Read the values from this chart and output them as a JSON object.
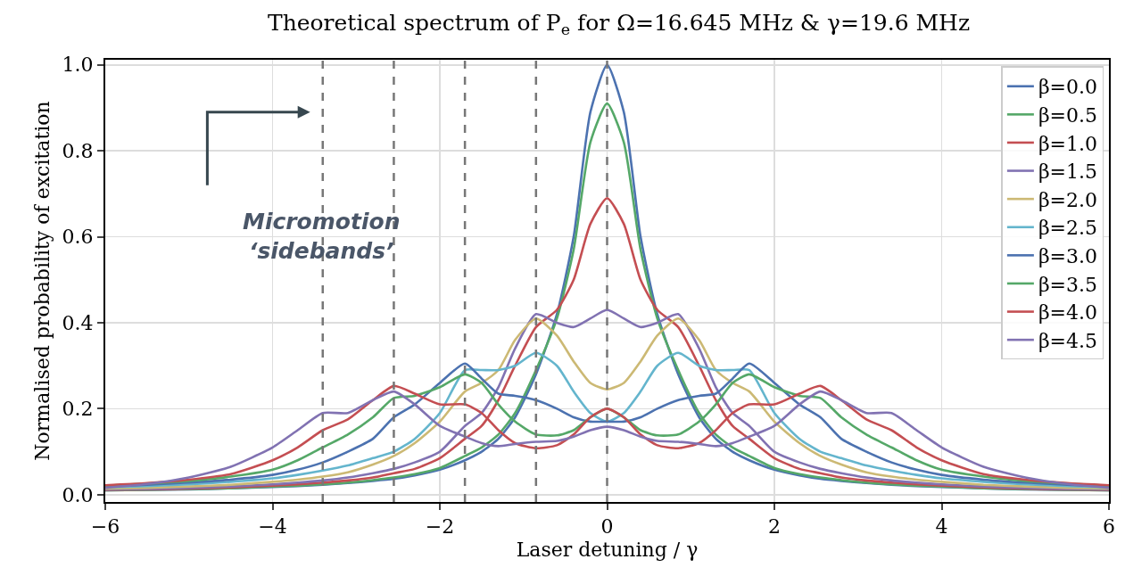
{
  "chart_data": {
    "type": "line",
    "title": "Theoretical spectrum of P$_{e}$ for Ω=16.645 MHz & γ=19.6 MHz",
    "xlabel": "Laser detuning / γ",
    "ylabel": "Normalised probability of excitation",
    "annotations": [
      "Micromotion\n‘sidebands’"
    ],
    "x": [
      -6,
      -5.5,
      -5,
      -4.5,
      -4,
      -3.7,
      -3.4,
      -3.1,
      -2.8,
      -2.55,
      -2.3,
      -2,
      -1.7,
      -1.5,
      -1.3,
      -1.1,
      -0.85,
      -0.6,
      -0.4,
      -0.2,
      0,
      0.2,
      0.4,
      0.6,
      0.85,
      1.1,
      1.3,
      1.5,
      1.7,
      2,
      2.3,
      2.55,
      2.8,
      3.1,
      3.4,
      3.7,
      4,
      4.5,
      5,
      5.5,
      6
    ],
    "series": [
      {
        "name": "β=0.0",
        "color": "#4c72b0",
        "values": [
          0.01,
          0.011,
          0.012,
          0.015,
          0.018,
          0.02,
          0.023,
          0.027,
          0.032,
          0.037,
          0.045,
          0.058,
          0.08,
          0.1,
          0.13,
          0.18,
          0.28,
          0.42,
          0.6,
          0.89,
          1.0,
          0.89,
          0.6,
          0.42,
          0.28,
          0.18,
          0.13,
          0.1,
          0.08,
          0.058,
          0.045,
          0.037,
          0.032,
          0.027,
          0.023,
          0.02,
          0.018,
          0.015,
          0.012,
          0.011,
          0.01
        ]
      },
      {
        "name": "β=0.5",
        "color": "#55a868",
        "values": [
          0.01,
          0.011,
          0.013,
          0.015,
          0.019,
          0.021,
          0.024,
          0.028,
          0.034,
          0.04,
          0.048,
          0.062,
          0.09,
          0.11,
          0.14,
          0.19,
          0.29,
          0.41,
          0.57,
          0.82,
          0.91,
          0.82,
          0.57,
          0.41,
          0.29,
          0.19,
          0.14,
          0.11,
          0.09,
          0.062,
          0.048,
          0.04,
          0.034,
          0.028,
          0.024,
          0.021,
          0.019,
          0.015,
          0.013,
          0.011,
          0.01
        ]
      },
      {
        "name": "β=1.0",
        "color": "#c44e52",
        "values": [
          0.011,
          0.012,
          0.014,
          0.017,
          0.021,
          0.024,
          0.028,
          0.033,
          0.04,
          0.05,
          0.06,
          0.085,
          0.13,
          0.16,
          0.22,
          0.3,
          0.39,
          0.43,
          0.5,
          0.63,
          0.69,
          0.63,
          0.5,
          0.43,
          0.39,
          0.3,
          0.22,
          0.16,
          0.13,
          0.085,
          0.06,
          0.05,
          0.04,
          0.033,
          0.028,
          0.024,
          0.021,
          0.017,
          0.014,
          0.012,
          0.011
        ]
      },
      {
        "name": "β=1.5",
        "color": "#8172b2",
        "values": [
          0.012,
          0.013,
          0.016,
          0.019,
          0.024,
          0.028,
          0.033,
          0.04,
          0.05,
          0.06,
          0.075,
          0.1,
          0.16,
          0.19,
          0.25,
          0.34,
          0.42,
          0.4,
          0.39,
          0.41,
          0.43,
          0.41,
          0.39,
          0.4,
          0.42,
          0.34,
          0.25,
          0.19,
          0.16,
          0.1,
          0.075,
          0.06,
          0.05,
          0.04,
          0.033,
          0.028,
          0.024,
          0.019,
          0.016,
          0.013,
          0.012
        ]
      },
      {
        "name": "β=2.0",
        "color": "#ccb974",
        "values": [
          0.014,
          0.016,
          0.019,
          0.023,
          0.03,
          0.035,
          0.042,
          0.052,
          0.07,
          0.09,
          0.12,
          0.17,
          0.24,
          0.26,
          0.29,
          0.36,
          0.41,
          0.37,
          0.31,
          0.26,
          0.245,
          0.26,
          0.31,
          0.37,
          0.41,
          0.36,
          0.29,
          0.26,
          0.24,
          0.17,
          0.12,
          0.09,
          0.07,
          0.052,
          0.042,
          0.035,
          0.03,
          0.023,
          0.019,
          0.016,
          0.014
        ]
      },
      {
        "name": "β=2.5",
        "color": "#64b5cd",
        "values": [
          0.017,
          0.02,
          0.024,
          0.03,
          0.038,
          0.046,
          0.056,
          0.068,
          0.085,
          0.1,
          0.13,
          0.19,
          0.29,
          0.29,
          0.29,
          0.3,
          0.33,
          0.3,
          0.24,
          0.19,
          0.17,
          0.19,
          0.24,
          0.3,
          0.33,
          0.3,
          0.29,
          0.29,
          0.29,
          0.19,
          0.13,
          0.1,
          0.085,
          0.068,
          0.056,
          0.046,
          0.038,
          0.03,
          0.024,
          0.02,
          0.017
        ]
      },
      {
        "name": "β=3.0",
        "color": "#4c72b0",
        "values": [
          0.019,
          0.023,
          0.028,
          0.035,
          0.046,
          0.058,
          0.075,
          0.1,
          0.13,
          0.18,
          0.21,
          0.26,
          0.305,
          0.27,
          0.235,
          0.23,
          0.22,
          0.2,
          0.18,
          0.17,
          0.17,
          0.17,
          0.18,
          0.2,
          0.22,
          0.23,
          0.235,
          0.27,
          0.305,
          0.26,
          0.21,
          0.18,
          0.13,
          0.1,
          0.075,
          0.058,
          0.046,
          0.035,
          0.028,
          0.023,
          0.019
        ]
      },
      {
        "name": "β=3.5",
        "color": "#55a868",
        "values": [
          0.021,
          0.026,
          0.032,
          0.042,
          0.058,
          0.08,
          0.11,
          0.14,
          0.18,
          0.225,
          0.23,
          0.25,
          0.28,
          0.26,
          0.21,
          0.17,
          0.14,
          0.138,
          0.15,
          0.18,
          0.2,
          0.18,
          0.15,
          0.138,
          0.14,
          0.17,
          0.21,
          0.26,
          0.28,
          0.25,
          0.23,
          0.225,
          0.18,
          0.14,
          0.11,
          0.08,
          0.058,
          0.042,
          0.032,
          0.026,
          0.021
        ]
      },
      {
        "name": "β=4.0",
        "color": "#c44e52",
        "values": [
          0.022,
          0.027,
          0.035,
          0.048,
          0.08,
          0.11,
          0.15,
          0.175,
          0.22,
          0.253,
          0.235,
          0.21,
          0.21,
          0.19,
          0.15,
          0.12,
          0.108,
          0.115,
          0.14,
          0.18,
          0.2,
          0.18,
          0.14,
          0.115,
          0.108,
          0.12,
          0.15,
          0.19,
          0.21,
          0.21,
          0.235,
          0.253,
          0.22,
          0.175,
          0.15,
          0.11,
          0.08,
          0.048,
          0.035,
          0.027,
          0.022
        ]
      },
      {
        "name": "β=4.5",
        "color": "#8172b2",
        "values": [
          0.016,
          0.025,
          0.04,
          0.065,
          0.11,
          0.15,
          0.19,
          0.19,
          0.22,
          0.24,
          0.21,
          0.16,
          0.135,
          0.12,
          0.113,
          0.118,
          0.123,
          0.125,
          0.135,
          0.15,
          0.158,
          0.15,
          0.135,
          0.125,
          0.123,
          0.118,
          0.113,
          0.12,
          0.135,
          0.16,
          0.21,
          0.24,
          0.22,
          0.19,
          0.19,
          0.15,
          0.11,
          0.065,
          0.04,
          0.025,
          0.016
        ]
      }
    ],
    "ref_lines": [
      {
        "axis": "x",
        "value": -3.4,
        "color": "#777777",
        "line_style": "dashed"
      },
      {
        "axis": "x",
        "value": -2.55,
        "color": "#777777",
        "line_style": "dashed"
      },
      {
        "axis": "x",
        "value": -1.7,
        "color": "#777777",
        "line_style": "dashed"
      },
      {
        "axis": "x",
        "value": -0.85,
        "color": "#777777",
        "line_style": "dashed"
      },
      {
        "axis": "x",
        "value": 0,
        "color": "#777777",
        "line_style": "dashed"
      }
    ],
    "xlim": [
      -6,
      6
    ],
    "xticks": [
      {
        "value": -6,
        "label": "−6"
      },
      {
        "value": -4,
        "label": "−4"
      },
      {
        "value": -2,
        "label": "−2"
      },
      0,
      2,
      4,
      6
    ],
    "ylim": [
      -0.017,
      1.012
    ],
    "yticks": [
      {
        "value": 0,
        "label": "0.0"
      },
      {
        "value": 0.2,
        "label": "0.2"
      },
      {
        "value": 0.4,
        "label": "0.4"
      },
      {
        "value": 0.6,
        "label": "0.6"
      },
      {
        "value": 0.8,
        "label": "0.8"
      },
      {
        "value": 1,
        "label": "1.0"
      }
    ],
    "grid": true,
    "legend": "top right",
    "marker": "none",
    "line_style": "solid"
  }
}
